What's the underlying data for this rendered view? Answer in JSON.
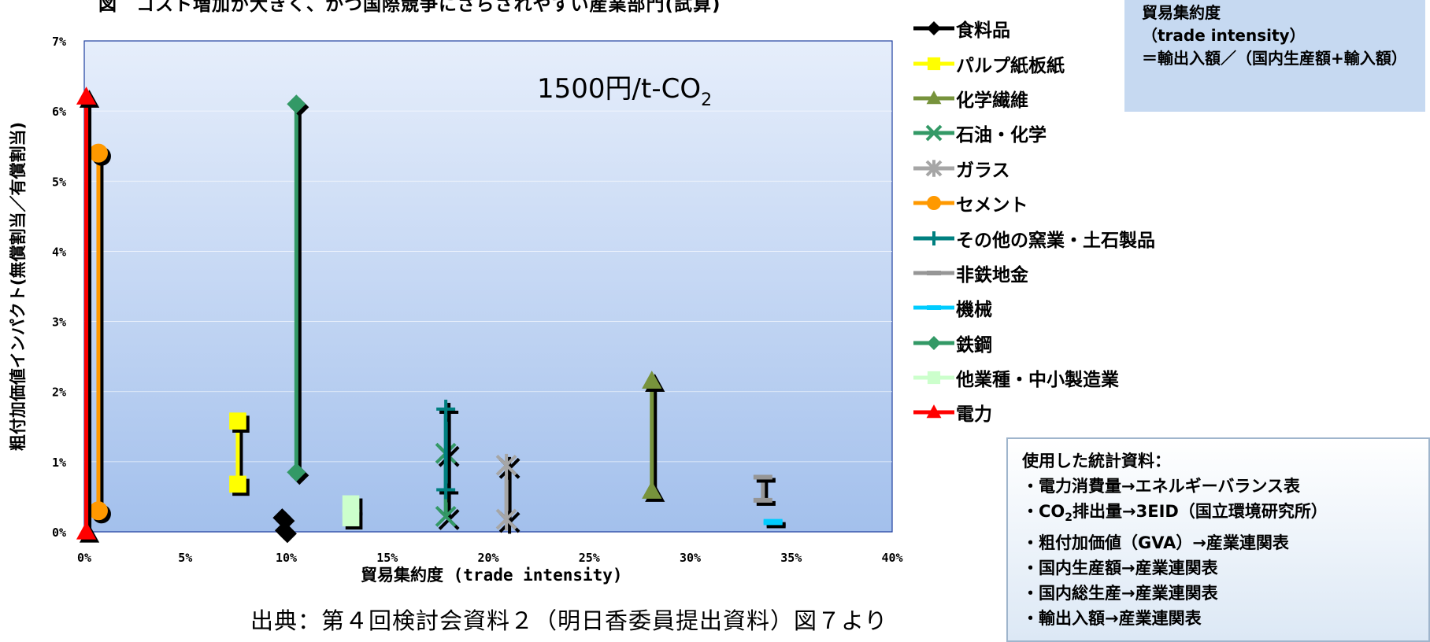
{
  "title": "図　コスト増加が大きく、かつ国際競争にさらされやすい産業部門(試算)",
  "price_label": {
    "main": "1500円/t-CO",
    "sub": "2"
  },
  "trade_intensity_box": {
    "heading": "貿易集約度",
    "english": "（trade intensity）",
    "formula": "＝輸出入額／（国内生産額+輸入額）"
  },
  "stats_box": {
    "heading": "使用した統計資料：",
    "items": [
      {
        "prefix": "・電力消費量→エネルギーバランス表",
        "sub": "",
        "suffix": ""
      },
      {
        "prefix": "・CO",
        "sub": "2",
        "suffix": "排出量→3EID（国立環境研究所）"
      },
      {
        "prefix": "・粗付加価値（GVA）→産業連関表",
        "sub": "",
        "suffix": ""
      },
      {
        "prefix": "・国内生産額→産業連関表",
        "sub": "",
        "suffix": ""
      },
      {
        "prefix": "・国内総生産→産業連関表",
        "sub": "",
        "suffix": ""
      },
      {
        "prefix": "・輸出入額→産業連関表",
        "sub": "",
        "suffix": ""
      }
    ]
  },
  "source_note": "出典：第４回検討会資料２（明日香委員提出資料）図７より",
  "chart_data": {
    "type": "scatter",
    "variant": "dumbbell-range",
    "title": "1500円/t-CO2",
    "xlabel": "貿易集約度 (trade intensity)",
    "ylabel": "粗付加価値インパクト(無償割当／有償割当)",
    "xlim": [
      0,
      0.4
    ],
    "ylim": [
      0,
      0.07
    ],
    "x_ticks": [
      0,
      0.05,
      0.1,
      0.15,
      0.2,
      0.25,
      0.3,
      0.35,
      0.4
    ],
    "x_tick_labels": [
      "0%",
      "5%",
      "10%",
      "15%",
      "20%",
      "25%",
      "30%",
      "35%",
      "40%"
    ],
    "y_ticks": [
      0,
      0.01,
      0.02,
      0.03,
      0.04,
      0.05,
      0.06,
      0.07
    ],
    "y_tick_labels": [
      "0%",
      "1%",
      "2%",
      "3%",
      "4%",
      "5%",
      "6%",
      "7%"
    ],
    "grid": true,
    "legend_position": "right",
    "series": [
      {
        "name": "食料品",
        "marker": "diamond",
        "color": "#000000",
        "points": [
          [
            0.098,
            0.002
          ],
          [
            0.099,
            0.0002
          ]
        ]
      },
      {
        "name": "パルプ紙板紙",
        "marker": "square",
        "color": "#ffff00",
        "points": [
          [
            0.076,
            0.0158
          ],
          [
            0.076,
            0.0068
          ]
        ]
      },
      {
        "name": "化学繊維",
        "marker": "triangle",
        "color": "#77933c",
        "points": [
          [
            0.281,
            0.0215
          ],
          [
            0.281,
            0.0058
          ]
        ]
      },
      {
        "name": "石油・化学",
        "marker": "x",
        "color": "#339966",
        "points": [
          [
            0.179,
            0.0112
          ],
          [
            0.179,
            0.0022
          ]
        ]
      },
      {
        "name": "ガラス",
        "marker": "star",
        "color": "#a6a6a6",
        "points": [
          [
            0.209,
            0.0095
          ],
          [
            0.209,
            0.0018
          ]
        ]
      },
      {
        "name": "セメント",
        "marker": "circle",
        "color": "#ff9900",
        "points": [
          [
            0.007,
            0.054
          ],
          [
            0.007,
            0.003
          ]
        ]
      },
      {
        "name": "その他の窯業・土石製品",
        "marker": "plus",
        "color": "#008080",
        "points": [
          [
            0.179,
            0.0175
          ],
          [
            0.179,
            0.006
          ]
        ]
      },
      {
        "name": "非鉄地金",
        "marker": "dash",
        "color": "#969696",
        "points": [
          [
            0.336,
            0.0078
          ],
          [
            0.336,
            0.0045
          ]
        ]
      },
      {
        "name": "機械",
        "marker": "dash",
        "color": "#00ccff",
        "points": [
          [
            0.341,
            0.0015
          ],
          [
            0.341,
            0.0013
          ]
        ]
      },
      {
        "name": "鉄鋼",
        "marker": "diamond",
        "color": "#339966",
        "points": [
          [
            0.105,
            0.061
          ],
          [
            0.105,
            0.0085
          ]
        ]
      },
      {
        "name": "他業種・中小製造業",
        "marker": "square",
        "color": "#ccffcc",
        "points": [
          [
            0.132,
            0.004
          ],
          [
            0.132,
            0.002
          ]
        ]
      },
      {
        "name": "電力",
        "marker": "triangle",
        "color": "#ff0000",
        "points": [
          [
            0.001,
            0.062
          ],
          [
            0.001,
            0.0
          ]
        ]
      }
    ]
  }
}
